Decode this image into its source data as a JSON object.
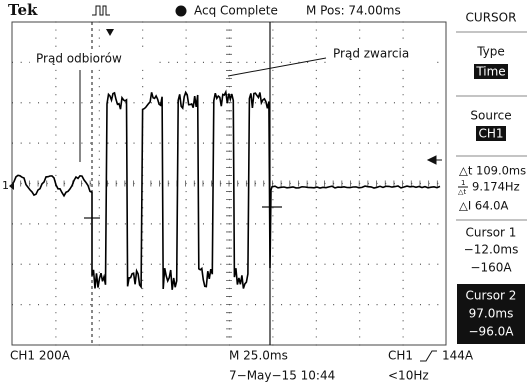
{
  "header": {
    "brand": "Tek",
    "status": "Acq Complete",
    "position": "M Pos: 74.00ms"
  },
  "annotations": {
    "load_current": "Prąd odbiorów",
    "short_current": "Prąd zwarcia"
  },
  "channel_marker": "1",
  "menu": {
    "title": "CURSOR",
    "type_label": "Type",
    "type_value": "Time",
    "source_label": "Source",
    "source_value": "CH1",
    "delta_t": "△t 109.0ms",
    "inv_numerator": "1",
    "inv_denominator": "△t",
    "inv_delta_t": "9.174Hz",
    "delta_i": "△I 64.0A",
    "cursor1": {
      "label": "Cursor 1",
      "time": "−12.0ms",
      "value": "−160A"
    },
    "cursor2": {
      "label": "Cursor 2",
      "time": "97.0ms",
      "value": "−96.0A"
    }
  },
  "footer": {
    "channel_scale": "CH1  200A",
    "time_scale": "M 25.0ms",
    "trigger_channel": "CH1",
    "trigger_level": "144A",
    "date": "7−May−15 10:44",
    "frequency": "<10Hz"
  }
}
